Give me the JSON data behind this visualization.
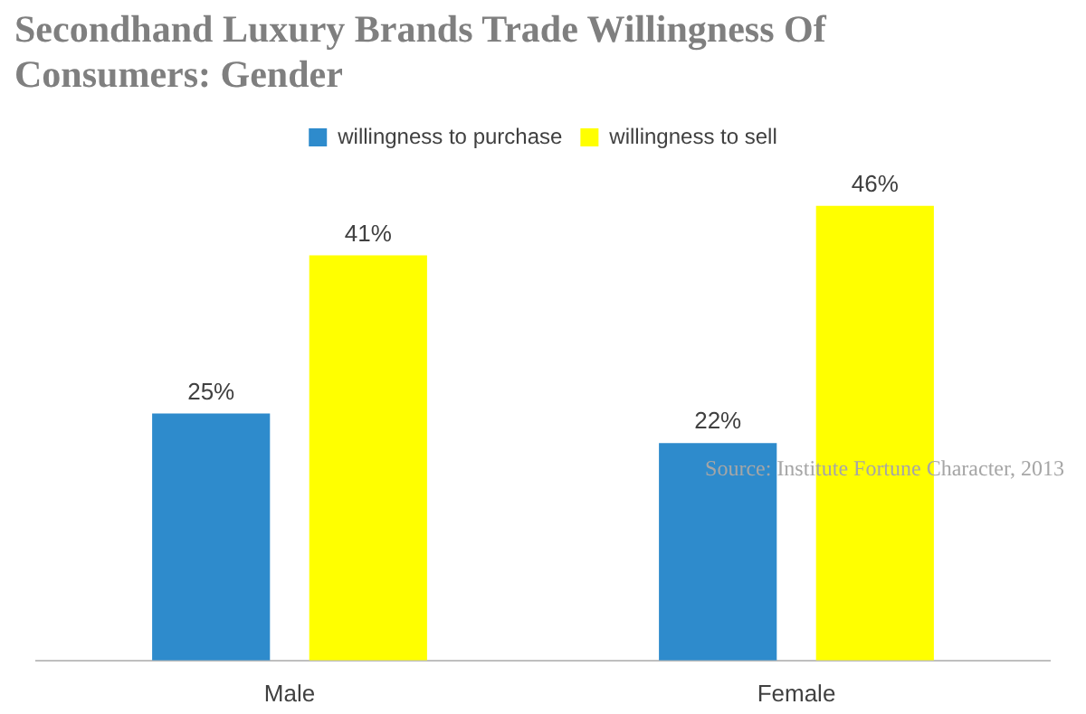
{
  "chart_data": {
    "type": "bar",
    "title": "Secondhand Luxury Brands Trade Willingness Of Consumers: Gender",
    "categories": [
      "Male",
      "Female"
    ],
    "series": [
      {
        "name": "willingness to purchase",
        "color": "#2e8bcc",
        "values": [
          25,
          22
        ],
        "value_labels": [
          "25%",
          "22%"
        ]
      },
      {
        "name": "willingness to sell",
        "color": "#ffff00",
        "values": [
          41,
          46
        ],
        "value_labels": [
          "41%",
          "46%"
        ]
      }
    ],
    "legend": "top",
    "grid": false,
    "annotations": [
      "Source: Institute Fortune Character, 2013"
    ]
  }
}
